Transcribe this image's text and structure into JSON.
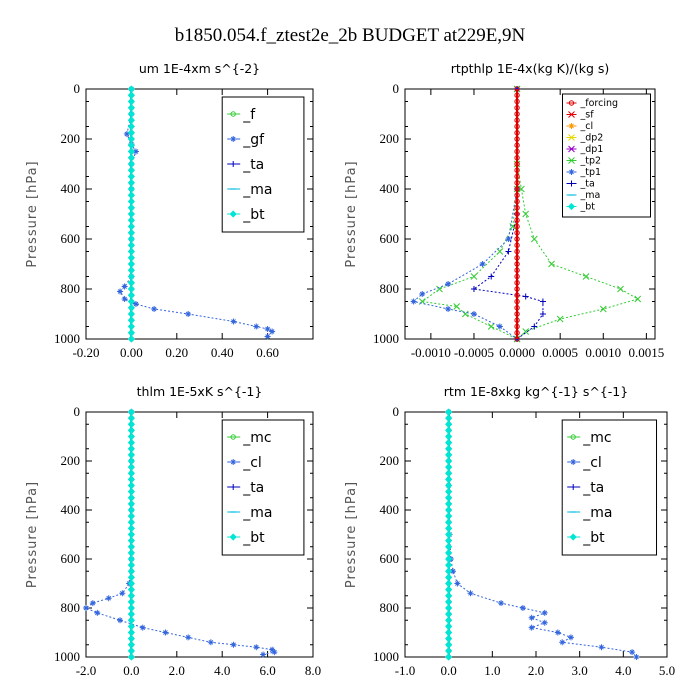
{
  "title": "b1850.054.f_ztest2e_2b  BUDGET at229E,9N",
  "colors": {
    "red": "#dd0000",
    "orange": "#ff9900",
    "yellow": "#e6d800",
    "purple": "#9900cc",
    "green": "#33cc33",
    "blue": "#3366dd",
    "navy": "#0000bb",
    "cyan": "#00bbdd",
    "aqua": "#00e6d6"
  },
  "chart_data": [
    {
      "type": "line",
      "title": "um   1E-4xm  s^{-2}",
      "ylabel": "Pressure  [hPa]",
      "xlim": [
        -0.2,
        0.8
      ],
      "ylim": [
        1000,
        0
      ],
      "xticks": [
        "-0.20",
        "0.00",
        "0.20",
        "0.40",
        "0.60"
      ],
      "yticks": [
        "0",
        "200",
        "400",
        "600",
        "800",
        "1000"
      ],
      "legend_style": "large",
      "legend": [
        "_f",
        "_gf",
        "_ta",
        "_ma",
        "_bt"
      ],
      "series": [
        {
          "name": "_f",
          "color": "green",
          "marker": "o",
          "x": [
            0,
            0,
            0,
            0,
            0,
            0,
            0,
            0,
            0,
            0,
            0
          ],
          "y": [
            0,
            100,
            200,
            300,
            400,
            500,
            600,
            700,
            800,
            900,
            1000
          ]
        },
        {
          "name": "_gf",
          "color": "blue",
          "marker": "*",
          "x": [
            0,
            0,
            -0.02,
            0,
            0.02,
            0,
            0,
            0,
            0,
            -0.03,
            -0.05,
            -0.03,
            0.02,
            0.1,
            0.25,
            0.45,
            0.55,
            0.6,
            0.62,
            0.6
          ],
          "y": [
            0,
            100,
            180,
            220,
            250,
            300,
            400,
            600,
            750,
            790,
            810,
            840,
            860,
            880,
            900,
            930,
            950,
            960,
            970,
            990
          ]
        },
        {
          "name": "_ta",
          "color": "navy",
          "marker": "+",
          "x": [
            0,
            0,
            0,
            0,
            0,
            0,
            0,
            0,
            0,
            0,
            0
          ],
          "y": [
            0,
            100,
            200,
            300,
            400,
            500,
            600,
            700,
            800,
            900,
            1000
          ]
        },
        {
          "name": "_ma",
          "color": "cyan",
          "marker": "-",
          "x": [
            0,
            0,
            0,
            0,
            0,
            0,
            0,
            0,
            0,
            0,
            0
          ],
          "y": [
            0,
            100,
            200,
            300,
            400,
            500,
            600,
            700,
            800,
            900,
            1000
          ]
        },
        {
          "name": "_bt",
          "color": "aqua",
          "marker": "d",
          "x": [
            0,
            0,
            0,
            0,
            0,
            0,
            0,
            0,
            0,
            0,
            0
          ],
          "y": [
            0,
            100,
            200,
            300,
            400,
            500,
            600,
            700,
            800,
            900,
            1000
          ]
        }
      ]
    },
    {
      "type": "line",
      "title": "rtpthlp   1E-4x(kg K)/(kg s)",
      "ylabel": "Pressure  [hPa]",
      "xlim": [
        -0.0013,
        0.0016
      ],
      "ylim": [
        1000,
        0
      ],
      "xticks": [
        "-0.0010",
        "-0.0005",
        "0.0000",
        "0.0005",
        "0.0010",
        "0.0015"
      ],
      "yticks": [
        "0",
        "200",
        "400",
        "600",
        "800",
        "1000"
      ],
      "legend_style": "small",
      "legend": [
        "_forcing",
        "_sf",
        "_cl",
        "_dp2",
        "_dp1",
        "_tp2",
        "_tp1",
        "_ta",
        "_ma",
        "_bt"
      ],
      "series": [
        {
          "name": "_dp1",
          "color": "green",
          "marker": "x",
          "x": [
            0,
            0,
            5e-05,
            0.0001,
            0.0002,
            0.0004,
            0.0008,
            0.0012,
            0.0014,
            0.001,
            0.0005,
            0.0001,
            0
          ],
          "y": [
            0,
            300,
            400,
            500,
            600,
            700,
            750,
            800,
            840,
            880,
            920,
            970,
            1000
          ]
        },
        {
          "name": "_tp2",
          "color": "green",
          "marker": "x",
          "x": [
            0,
            0,
            -5e-05,
            -0.0002,
            -0.0005,
            -0.0009,
            -0.0011,
            -0.0007,
            -0.0006,
            -0.0003,
            0
          ],
          "y": [
            0,
            400,
            550,
            650,
            750,
            800,
            850,
            870,
            900,
            950,
            1000
          ]
        },
        {
          "name": "_tp1",
          "color": "blue",
          "marker": "*",
          "x": [
            0,
            0,
            -0.0001,
            -0.0004,
            -0.0008,
            -0.0011,
            -0.0012,
            -0.0008,
            -0.0005,
            -0.0002,
            0
          ],
          "y": [
            0,
            400,
            600,
            700,
            780,
            820,
            850,
            880,
            900,
            950,
            1000
          ]
        },
        {
          "name": "_ta",
          "color": "navy",
          "marker": "+",
          "x": [
            0,
            0,
            -0.0001,
            -0.0003,
            -0.0005,
            0.0001,
            0.0003,
            0.0003,
            0.0002,
            0
          ],
          "y": [
            0,
            500,
            650,
            750,
            800,
            830,
            850,
            900,
            950,
            1000
          ]
        },
        {
          "name": "_forcing",
          "color": "red",
          "marker": "o",
          "x": [
            0,
            0,
            0,
            0,
            0,
            0,
            0,
            0,
            0,
            0,
            0
          ],
          "y": [
            0,
            100,
            200,
            300,
            400,
            500,
            600,
            700,
            800,
            900,
            1000
          ]
        }
      ]
    },
    {
      "type": "line",
      "title": "thlm   1E-5xK  s^{-1}",
      "ylabel": "Pressure  [hPa]",
      "xlim": [
        -2.0,
        8.0
      ],
      "ylim": [
        1000,
        0
      ],
      "xticks": [
        "-2.0",
        "0.0",
        "2.0",
        "4.0",
        "6.0",
        "8.0"
      ],
      "yticks": [
        "0",
        "200",
        "400",
        "600",
        "800",
        "1000"
      ],
      "legend_style": "large",
      "legend": [
        "_mc",
        "_cl",
        "_ta",
        "_ma",
        "_bt"
      ],
      "series": [
        {
          "name": "_mc",
          "color": "green",
          "marker": "o",
          "x": [
            0,
            0,
            0,
            0,
            0,
            0,
            0,
            0,
            0,
            0,
            0
          ],
          "y": [
            0,
            100,
            200,
            300,
            400,
            500,
            600,
            700,
            800,
            900,
            1000
          ]
        },
        {
          "name": "_cl",
          "color": "blue",
          "marker": "*",
          "x": [
            0,
            0,
            0,
            0,
            -0.1,
            -0.4,
            -1,
            -1.7,
            -2,
            -1.5,
            -0.5,
            0.5,
            1.5,
            2.5,
            3.5,
            4.5,
            5.5,
            6.2,
            6.3,
            5.8
          ],
          "y": [
            0,
            200,
            400,
            600,
            700,
            740,
            760,
            780,
            800,
            820,
            850,
            880,
            900,
            920,
            940,
            950,
            960,
            970,
            980,
            990
          ]
        },
        {
          "name": "_ta",
          "color": "navy",
          "marker": "+",
          "x": [
            0,
            0,
            0,
            0,
            0,
            0,
            0,
            0,
            0,
            0,
            0
          ],
          "y": [
            0,
            100,
            200,
            300,
            400,
            500,
            600,
            700,
            800,
            900,
            1000
          ]
        },
        {
          "name": "_ma",
          "color": "cyan",
          "marker": "-",
          "x": [
            0,
            0,
            0,
            0,
            0,
            0,
            0,
            0,
            0,
            0,
            0
          ],
          "y": [
            0,
            100,
            200,
            300,
            400,
            500,
            600,
            700,
            800,
            900,
            1000
          ]
        },
        {
          "name": "_bt",
          "color": "aqua",
          "marker": "d",
          "x": [
            0,
            0,
            0,
            0,
            0,
            0,
            0,
            0,
            0,
            0,
            0
          ],
          "y": [
            0,
            100,
            200,
            300,
            400,
            500,
            600,
            700,
            800,
            900,
            1000
          ]
        }
      ]
    },
    {
      "type": "line",
      "title": "rtm   1E-8xkg  kg^{-1} s^{-1}",
      "ylabel": "Pressure  [hPa]",
      "xlim": [
        -1.0,
        5.0
      ],
      "ylim": [
        1000,
        0
      ],
      "xticks": [
        "-1.0",
        "0.0",
        "1.0",
        "2.0",
        "3.0",
        "4.0",
        "5.0"
      ],
      "yticks": [
        "0",
        "200",
        "400",
        "600",
        "800",
        "1000"
      ],
      "legend_style": "large",
      "legend": [
        "_mc",
        "_cl",
        "_ta",
        "_ma",
        "_bt"
      ],
      "series": [
        {
          "name": "_mc",
          "color": "green",
          "marker": "o",
          "x": [
            0,
            0,
            0,
            0,
            0,
            0,
            0,
            0,
            0,
            0,
            0
          ],
          "y": [
            0,
            100,
            200,
            300,
            400,
            500,
            600,
            700,
            800,
            900,
            1000
          ]
        },
        {
          "name": "_cl",
          "color": "blue",
          "marker": "*",
          "x": [
            0,
            0,
            0.02,
            0.05,
            0.1,
            0.2,
            0.5,
            1.2,
            1.7,
            2.2,
            1.9,
            2.2,
            1.9,
            2.5,
            2.8,
            2.6,
            3.5,
            4.2,
            4.3
          ],
          "y": [
            0,
            300,
            500,
            600,
            650,
            700,
            740,
            780,
            800,
            820,
            840,
            860,
            880,
            900,
            920,
            940,
            960,
            980,
            1000
          ]
        },
        {
          "name": "_ta",
          "color": "navy",
          "marker": "+",
          "x": [
            0,
            0,
            0,
            0,
            0,
            0,
            0,
            0,
            0,
            0,
            0
          ],
          "y": [
            0,
            100,
            200,
            300,
            400,
            500,
            600,
            700,
            800,
            900,
            1000
          ]
        },
        {
          "name": "_ma",
          "color": "cyan",
          "marker": "-",
          "x": [
            0,
            0,
            0,
            0,
            0,
            0,
            0,
            0,
            0,
            0,
            0
          ],
          "y": [
            0,
            100,
            200,
            300,
            400,
            500,
            600,
            700,
            800,
            900,
            1000
          ]
        },
        {
          "name": "_bt",
          "color": "aqua",
          "marker": "d",
          "x": [
            0,
            0,
            0,
            0,
            0,
            0,
            0,
            0,
            0,
            0,
            0
          ],
          "y": [
            0,
            100,
            200,
            300,
            400,
            500,
            600,
            700,
            800,
            900,
            1000
          ]
        }
      ]
    }
  ]
}
